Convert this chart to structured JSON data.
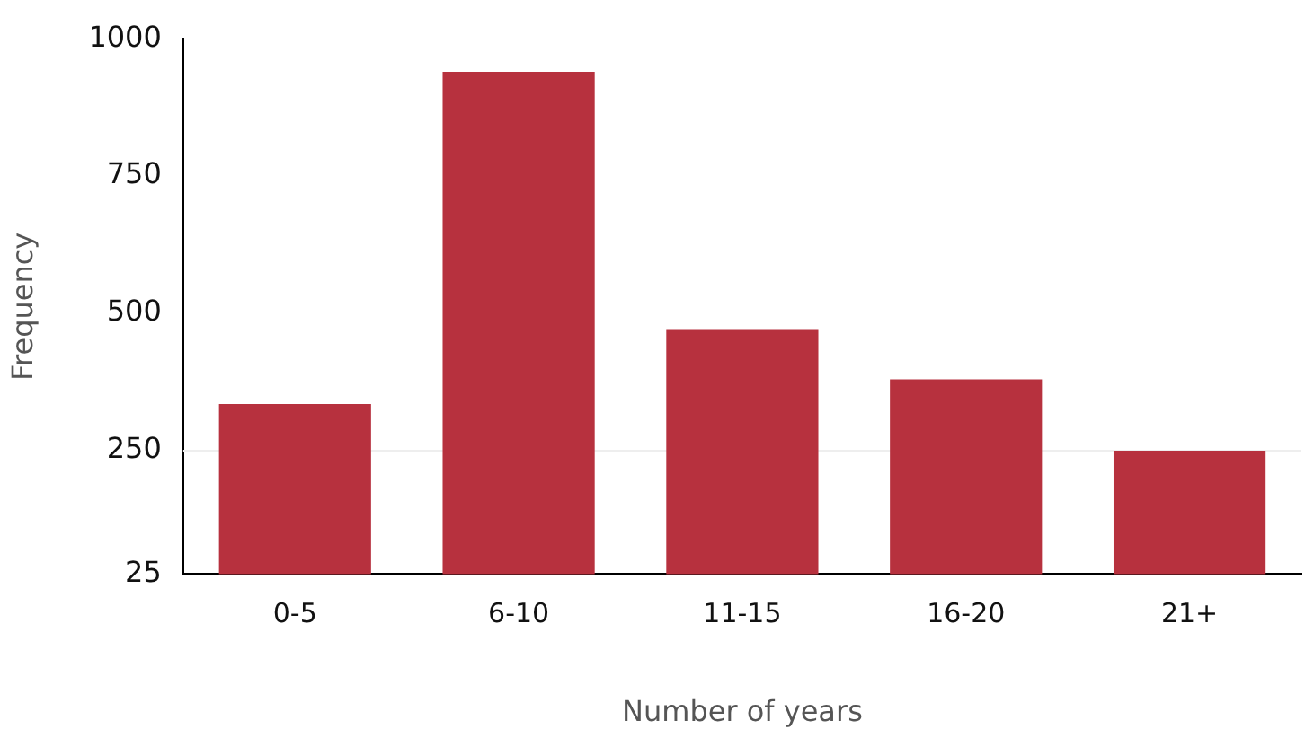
{
  "chart_data": {
    "type": "bar",
    "xlabel": "Number of years",
    "ylabel": "Frequency",
    "categories": [
      "0-5",
      "6-10",
      "11-15",
      "16-20",
      "21+"
    ],
    "values": [
      335,
      940,
      470,
      380,
      250
    ],
    "color": "#b7313e",
    "ylim": [
      25,
      1000
    ],
    "yticks": [
      25,
      250,
      500,
      750,
      1000
    ],
    "ref_lines": [
      {
        "axis": "y",
        "value": 250,
        "color": "#eeeeee"
      }
    ],
    "grid": false,
    "legend": false
  }
}
